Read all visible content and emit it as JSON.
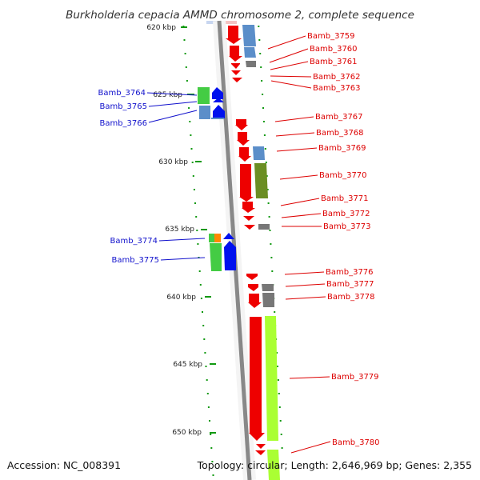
{
  "title": "Burkholderia cepacia AMMD chromosome 2, complete sequence",
  "footer": {
    "accession": "Accession: NC_008391",
    "topology": "Topology: circular; Length: 2,646,969 bp; Genes: 2,355"
  },
  "ticks": [
    "620 kbp",
    "625 kbp",
    "630 kbp",
    "635 kbp",
    "640 kbp",
    "645 kbp",
    "650 kbp"
  ],
  "colors": {
    "forward_label": "#1111cc",
    "reverse_label": "#dd0000",
    "cds_red": "#ee0000",
    "cds_blue": "#0011ee",
    "cog_steelblue": "#5b8ec9",
    "cog_green": "#44cc44",
    "cog_olive": "#6b8e23",
    "cog_lime": "#aaff33",
    "cog_gray": "#777777",
    "cog_orange": "#ff8800",
    "backbone": "#888888",
    "tick_green": "#119911"
  },
  "labels_left": [
    "Bamb_3764",
    "Bamb_3765",
    "Bamb_3766",
    "Bamb_3774",
    "Bamb_3775"
  ],
  "labels_right": [
    "Bamb_3759",
    "Bamb_3760",
    "Bamb_3761",
    "Bamb_3762",
    "Bamb_3763",
    "Bamb_3767",
    "Bamb_3768",
    "Bamb_3769",
    "Bamb_3770",
    "Bamb_3771",
    "Bamb_3772",
    "Bamb_3773",
    "Bamb_3776",
    "Bamb_3777",
    "Bamb_3778",
    "Bamb_3779",
    "Bamb_3780"
  ]
}
